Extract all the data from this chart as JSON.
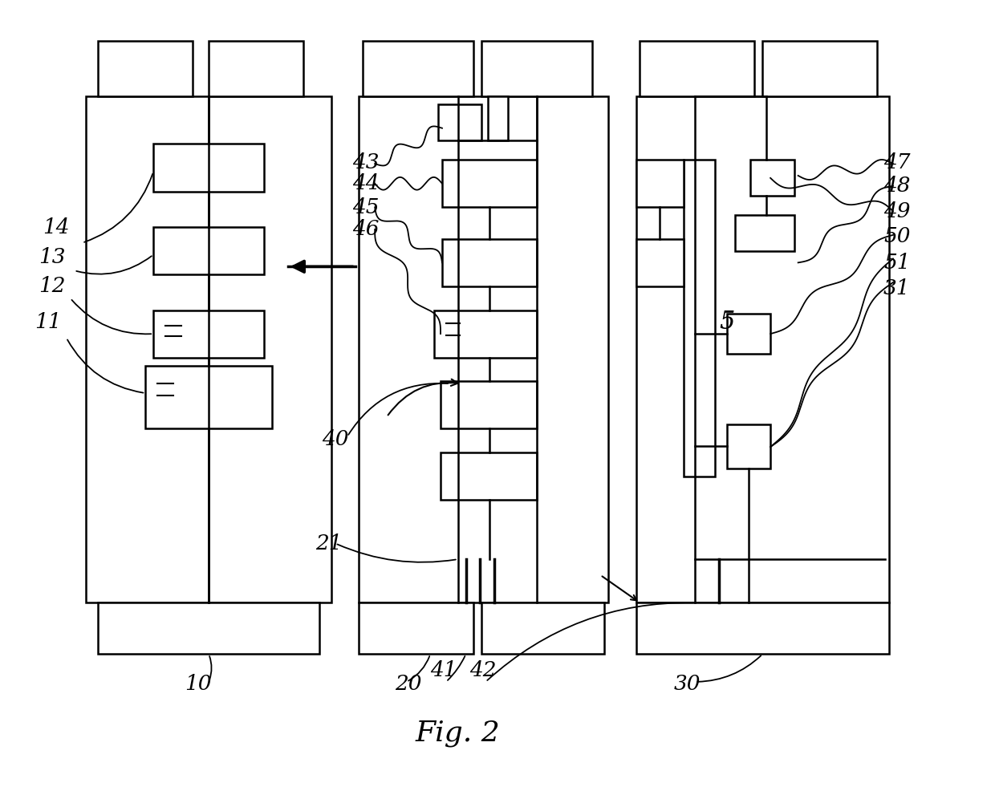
{
  "bg_color": "#ffffff",
  "line_color": "#000000",
  "lw": 1.8,
  "fig_label": "Fig. 2"
}
